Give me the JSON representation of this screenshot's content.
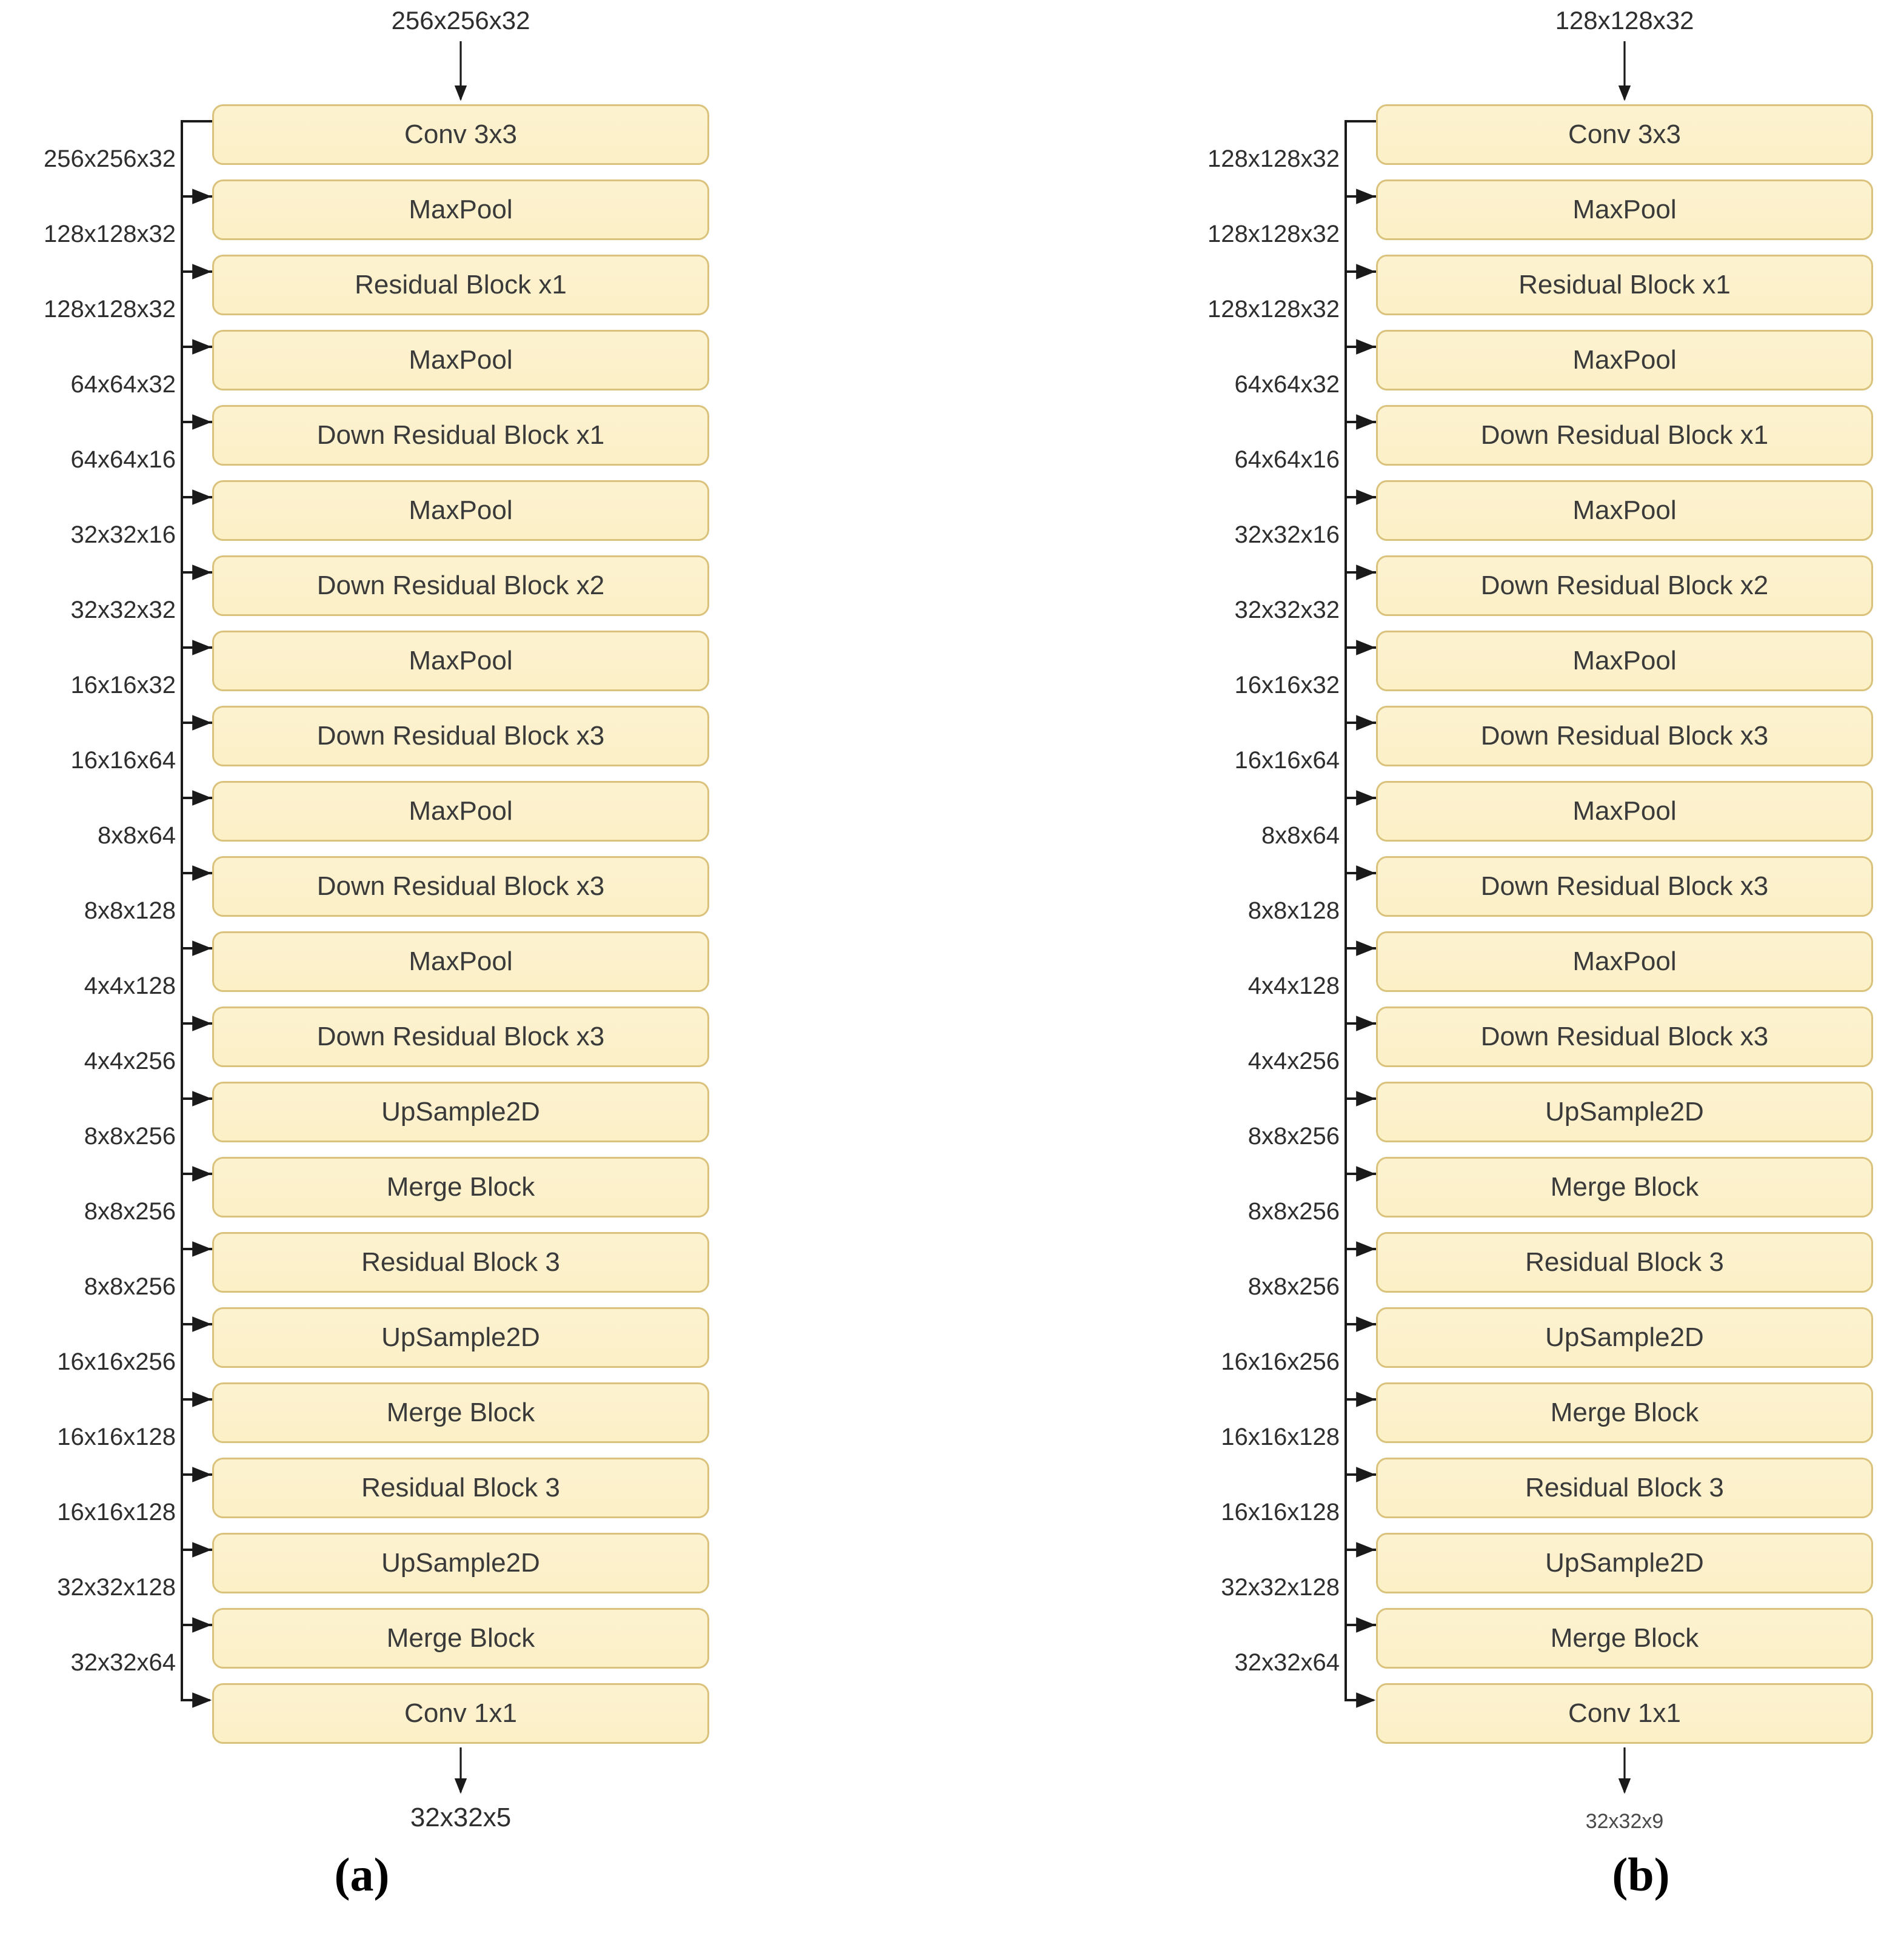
{
  "figure": {
    "columns": [
      {
        "id": "a",
        "caption": "(a)",
        "input_label": "256x256x32",
        "output_label": "32x32x5",
        "layers": [
          "Conv 3x3",
          "MaxPool",
          "Residual Block x1",
          "MaxPool",
          "Down Residual Block x1",
          "MaxPool",
          "Down Residual Block x2",
          "MaxPool",
          "Down Residual Block x3",
          "MaxPool",
          "Down Residual Block x3",
          "MaxPool",
          "Down Residual Block x3",
          "UpSample2D",
          "Merge Block",
          "Residual Block 3",
          "UpSample2D",
          "Merge Block",
          "Residual Block 3",
          "UpSample2D",
          "Merge Block",
          "Conv 1x1"
        ],
        "side_labels": [
          "256x256x32",
          "128x128x32",
          "128x128x32",
          "64x64x32",
          "64x64x16",
          "32x32x16",
          "32x32x32",
          "16x16x32",
          "16x16x64",
          "8x8x64",
          "8x8x128",
          "4x4x128",
          "4x4x256",
          "8x8x256",
          "8x8x256",
          "8x8x256",
          "16x16x256",
          "16x16x128",
          "16x16x128",
          "32x32x128",
          "32x32x64"
        ]
      },
      {
        "id": "b",
        "caption": "(b)",
        "input_label": "128x128x32",
        "output_label": "32x32x9",
        "layers": [
          "Conv 3x3",
          "MaxPool",
          "Residual Block x1",
          "MaxPool",
          "Down Residual Block x1",
          "MaxPool",
          "Down Residual Block x2",
          "MaxPool",
          "Down Residual Block x3",
          "MaxPool",
          "Down Residual Block x3",
          "MaxPool",
          "Down Residual Block x3",
          "UpSample2D",
          "Merge Block",
          "Residual Block 3",
          "UpSample2D",
          "Merge Block",
          "Residual Block 3",
          "UpSample2D",
          "Merge Block",
          "Conv 1x1"
        ],
        "side_labels": [
          "128x128x32",
          "128x128x32",
          "128x128x32",
          "64x64x32",
          "64x64x16",
          "32x32x16",
          "32x32x32",
          "16x16x32",
          "16x16x64",
          "8x8x64",
          "8x8x128",
          "4x4x128",
          "4x4x256",
          "8x8x256",
          "8x8x256",
          "8x8x256",
          "16x16x256",
          "16x16x128",
          "16x16x128",
          "32x32x128",
          "32x32x64"
        ]
      }
    ],
    "colors": {
      "box_fill": "#FBF0C6",
      "box_border": "#DAC27C",
      "box_text": "#3A3A3A",
      "label_text": "#2E2E2E",
      "line": "#1A1A1A",
      "background": "#FFFFFF"
    }
  }
}
